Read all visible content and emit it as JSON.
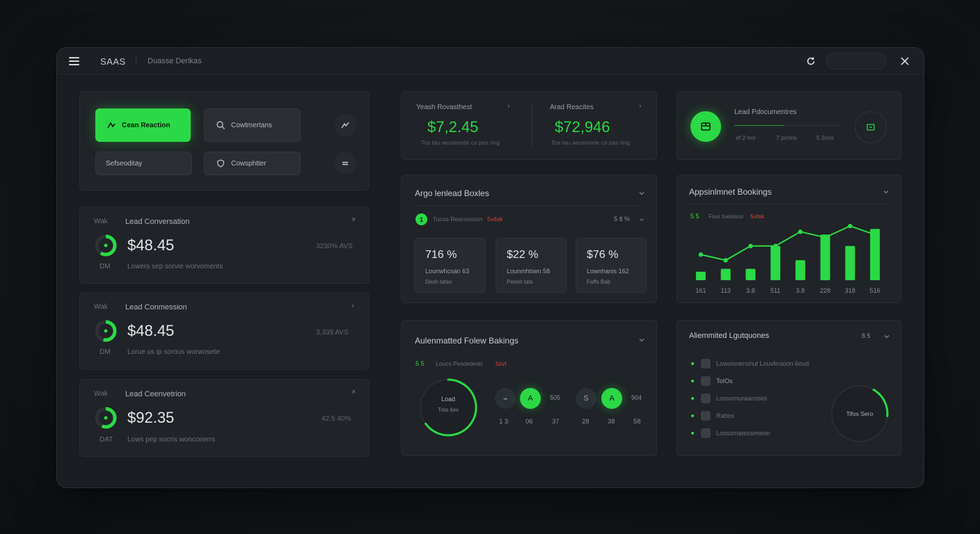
{
  "titlebar": {
    "app_name": "SAAS",
    "breadcrumb": "Duasse Derikas"
  },
  "actions": {
    "primary_label": "Cean Reaction",
    "secondary_label": "Cowtmertans",
    "schedule_label": "Sefseoditay",
    "competitor_label": "Cowsphtter"
  },
  "lead_cards": [
    {
      "left_top": "Wak",
      "title": "Lead Conversation",
      "value": "$48.45",
      "right": "3230% AVS",
      "left_bottom": "DM",
      "subtitle": "Lowers sep sorvie worvoments"
    },
    {
      "left_top": "Wak",
      "title": "Lead Conmession",
      "value": "$48.45",
      "right": "3,339 AVS",
      "left_bottom": "DM",
      "subtitle": "Lorue us ip sorous worwosete"
    },
    {
      "left_top": "Wak",
      "title": "Lead Ceenvetrion",
      "value": "$92.35",
      "right": "42.5 40%",
      "left_bottom": "DAT",
      "subtitle": "Lows pep socris wonconerrs"
    }
  ],
  "stats_pair": {
    "a_label": "Yeash Rovasthest",
    "a_value": "$7,2.45",
    "a_sub": "Tos tau aeosionde ca pas ring",
    "b_label": "Arad Reacites",
    "b_value": "$72,946",
    "b_sub": "Tos tau aeosionde ca pas ring"
  },
  "lead_docs": {
    "title": "Lead Pdocumentres",
    "stats": [
      "ef 2 hor",
      "7 pcnns",
      "5 2cns"
    ]
  },
  "tile_card": {
    "title": "Argo lenlead Boxles",
    "badge": "1",
    "note": "Tucos Reacoxision",
    "note_red": "5x6xk",
    "right": "5 8 %",
    "tiles": [
      {
        "pct": "716 %",
        "l1": "Lounwhcsan 63",
        "l2": "Dexh tatso"
      },
      {
        "pct": "$22 %",
        "l1": "Lounmhtsen 58",
        "l2": "Peosh tats"
      },
      {
        "pct": "$76 %",
        "l1": "Lownhanis 162",
        "l2": "Faffs Bab"
      }
    ]
  },
  "appointment": {
    "title": "Appsinlmnet Bookings",
    "note_left": "5 5",
    "note_text": "Fiuo tuesisus",
    "note_red": "5xtsk",
    "chart_data": {
      "type": "bar",
      "categories": [
        "161",
        "113",
        "3.8",
        "511",
        "3.8",
        "228",
        "318",
        "516"
      ],
      "values": [
        3,
        4,
        4,
        12,
        7,
        16,
        12,
        18
      ],
      "line_values": [
        9,
        7,
        12,
        12,
        17,
        15,
        19,
        16
      ],
      "ylim": [
        0,
        20
      ]
    }
  },
  "followup": {
    "title": "Aulenmatted Folew Bakings",
    "note_left": "5 5",
    "note_text": "Loucs Pesdetiedo",
    "note_red": "5zvt",
    "ring_top": "Load",
    "ring_bottom": "Tota ties",
    "ring_progress": 0.65,
    "bubbles_a": [
      {
        "sym": "⌁",
        "on": false
      },
      {
        "sym": "A",
        "on": true
      }
    ],
    "bubbles_a_val": "505",
    "bubbles_b": [
      {
        "sym": "S",
        "on": false
      },
      {
        "sym": "A",
        "on": true
      }
    ],
    "bubbles_b_val": "904",
    "numbers": [
      "1 3",
      "06",
      "37",
      "28",
      "38",
      "58"
    ]
  },
  "automated": {
    "title": "Aliemmited Lgutquones",
    "right": "8 5",
    "items": [
      "Lowoisnenshut Louvlinsoon 6oud",
      "ToIOs",
      "Lossornuraanssioi",
      "Rabos",
      "Loossmatessimeoo"
    ],
    "ring_label": "Tifos Sero",
    "ring_progress": 0.18
  },
  "colors": {
    "accent": "#2bd946",
    "alert": "#e0433b"
  }
}
